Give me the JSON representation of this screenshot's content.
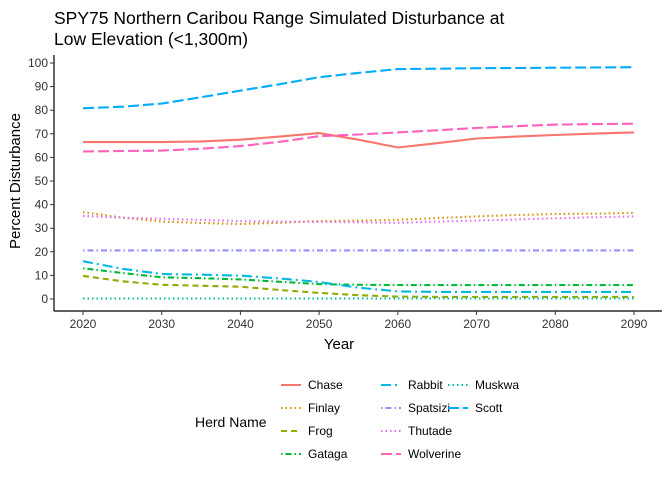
{
  "chart_data": {
    "type": "line",
    "title": "SPY75 Northern Caribou Range Simulated Disturbance at Low Elevation (<1,300m)",
    "title_lines": [
      "SPY75 Northern Caribou Range Simulated Disturbance at",
      "Low Elevation (<1,300m)"
    ],
    "xlabel": "Year",
    "ylabel": "Percent Disturbance",
    "xlim": [
      2020,
      2090
    ],
    "ylim": [
      0,
      100
    ],
    "x_ticks": [
      2020,
      2030,
      2040,
      2050,
      2060,
      2070,
      2080,
      2090
    ],
    "y_ticks": [
      0,
      10,
      20,
      30,
      40,
      50,
      60,
      70,
      80,
      90,
      100
    ],
    "grid": false,
    "legend": {
      "title": "Herd Name",
      "position": "bottom"
    },
    "x": [
      2020,
      2025,
      2030,
      2035,
      2040,
      2045,
      2050,
      2055,
      2060,
      2065,
      2070,
      2075,
      2080,
      2085,
      2090
    ],
    "series": [
      {
        "name": "Chase",
        "color": "#F8766D",
        "dash": "solid",
        "values": [
          66.5,
          66.5,
          66.5,
          66.8,
          67.5,
          68.8,
          70.3,
          67.5,
          64.2,
          66.0,
          68.0,
          68.8,
          69.5,
          70.1,
          70.6
        ]
      },
      {
        "name": "Finlay",
        "color": "#D39200",
        "dash": "dotted",
        "values": [
          36.8,
          34.5,
          32.8,
          32.2,
          31.8,
          32.3,
          33.0,
          33.2,
          33.6,
          34.3,
          35.0,
          35.6,
          36.0,
          36.2,
          36.5
        ]
      },
      {
        "name": "Frog",
        "color": "#93AA00",
        "dash": "dashed",
        "values": [
          9.8,
          7.5,
          6.0,
          5.6,
          5.2,
          3.8,
          2.6,
          1.6,
          1.0,
          0.9,
          0.9,
          0.9,
          0.9,
          0.9,
          0.9
        ]
      },
      {
        "name": "Gataga",
        "color": "#00BA38",
        "dash": "dashdot",
        "values": [
          13.0,
          11.0,
          9.2,
          8.8,
          8.3,
          7.3,
          6.3,
          6.0,
          5.9,
          5.9,
          5.9,
          5.9,
          5.9,
          5.9,
          5.9
        ]
      },
      {
        "name": "Muskwa",
        "color": "#00C19F",
        "dash": "dotted",
        "values": [
          0.2,
          0.2,
          0.2,
          0.2,
          0.2,
          0.2,
          0.2,
          0.2,
          0.2,
          0.2,
          0.2,
          0.2,
          0.2,
          0.2,
          0.2
        ]
      },
      {
        "name": "Rabbit",
        "color": "#00B9E3",
        "dash": "longdashdot",
        "values": [
          16.0,
          12.8,
          10.6,
          10.3,
          9.9,
          8.7,
          7.2,
          4.8,
          3.2,
          3.0,
          3.0,
          3.0,
          3.0,
          3.0,
          3.0
        ]
      },
      {
        "name": "Scott",
        "color": "#00ADFA",
        "dash": "longdash",
        "values": [
          80.8,
          81.5,
          82.8,
          85.5,
          88.3,
          91.0,
          94.0,
          95.8,
          97.4,
          97.6,
          97.8,
          97.9,
          98.0,
          98.1,
          98.2
        ]
      },
      {
        "name": "Spatsizi",
        "color": "#9590FF",
        "dash": "dashdot",
        "values": [
          20.6,
          20.6,
          20.6,
          20.6,
          20.6,
          20.6,
          20.6,
          20.6,
          20.6,
          20.6,
          20.6,
          20.6,
          20.6,
          20.6,
          20.6
        ]
      },
      {
        "name": "Thutade",
        "color": "#E76BF3",
        "dash": "dotted",
        "values": [
          35.2,
          34.5,
          34.0,
          33.5,
          33.0,
          32.8,
          32.7,
          32.5,
          32.3,
          32.8,
          33.2,
          33.7,
          34.2,
          34.6,
          35.0
        ]
      },
      {
        "name": "Wolverine",
        "color": "#FF62BC",
        "dash": "longdash",
        "values": [
          62.5,
          62.7,
          62.9,
          63.7,
          64.8,
          66.6,
          69.0,
          69.7,
          70.6,
          71.5,
          72.5,
          73.2,
          73.9,
          74.1,
          74.3
        ]
      }
    ]
  }
}
